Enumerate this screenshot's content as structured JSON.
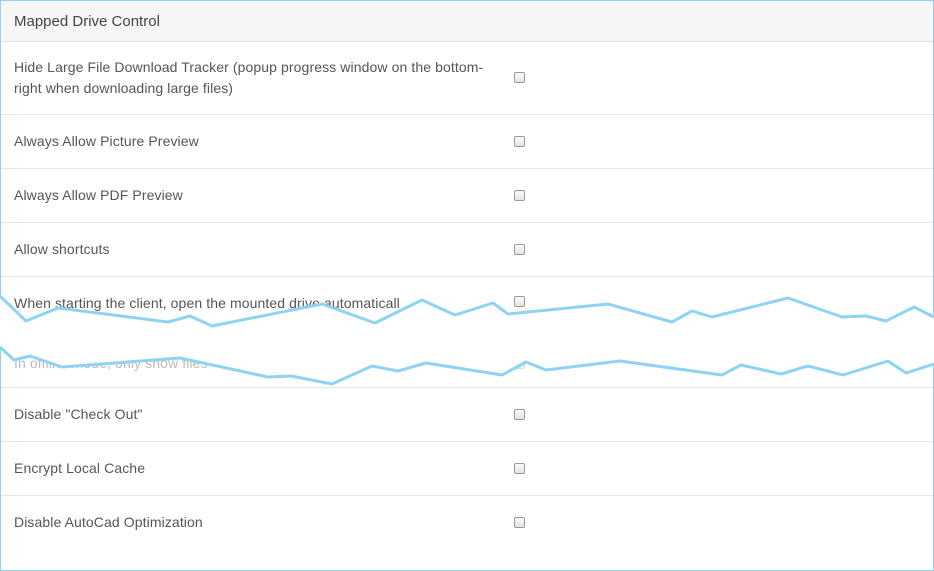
{
  "panel": {
    "title": "Mapped Drive Control"
  },
  "settings": [
    {
      "label": "Hide Large File Download Tracker (popup progress window on the bottom-right when downloading large files)",
      "checked": false
    },
    {
      "label": "Always Allow Picture Preview",
      "checked": false
    },
    {
      "label": "Always Allow PDF Preview",
      "checked": false
    },
    {
      "label": "Allow shortcuts",
      "checked": false
    },
    {
      "label": "When starting the client, open the mounted drive automaticall",
      "checked": false
    },
    {
      "label": "In offline mode, only show files",
      "checked": false
    },
    {
      "label": "Disable \"Check Out\"",
      "checked": false
    },
    {
      "label": "Encrypt Local Cache",
      "checked": false
    },
    {
      "label": "Disable AutoCad Optimization",
      "checked": false
    }
  ],
  "colors": {
    "border": "#8fd3f4",
    "tear_line": "#8fd3f4",
    "header_bg": "#f6f6f6",
    "text": "#555555"
  }
}
